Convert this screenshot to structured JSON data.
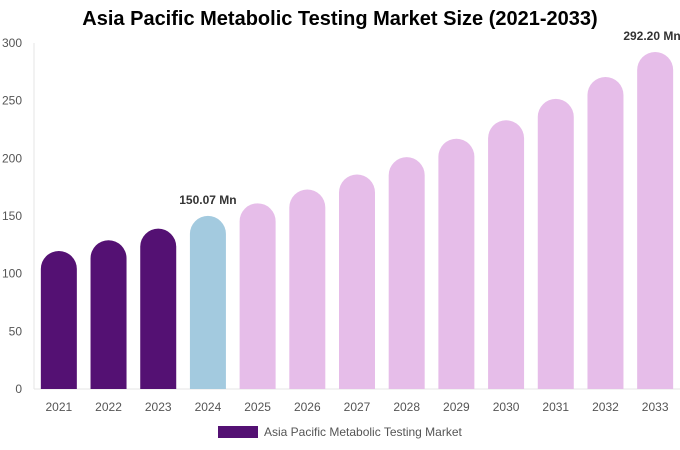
{
  "chart_data": {
    "type": "bar",
    "title": "Asia Pacific Metabolic Testing Market Size (2021-2033)",
    "categories": [
      "2021",
      "2022",
      "2023",
      "2024",
      "2025",
      "2026",
      "2027",
      "2028",
      "2029",
      "2030",
      "2031",
      "2032",
      "2033"
    ],
    "values": [
      119.7,
      129.0,
      139.0,
      150.07,
      161.0,
      173.0,
      186.0,
      201.0,
      217.0,
      233.0,
      251.5,
      270.5,
      292.2
    ],
    "ylim": [
      0,
      300
    ],
    "yticks": [
      0,
      50,
      100,
      150,
      200,
      250,
      300
    ],
    "data_labels": [
      {
        "category": "2024",
        "text": "150.07 Mn"
      },
      {
        "category": "2033",
        "text": "292.20 Mn"
      }
    ],
    "legend": {
      "label": "Asia Pacific Metabolic Testing Market",
      "placement": "bottom"
    },
    "colors": {
      "historical": "#541173",
      "current": "#a3cadf",
      "forecast": "#e6bde9",
      "legend": "#541173"
    },
    "xlabel": "",
    "ylabel": "",
    "grid": false
  }
}
